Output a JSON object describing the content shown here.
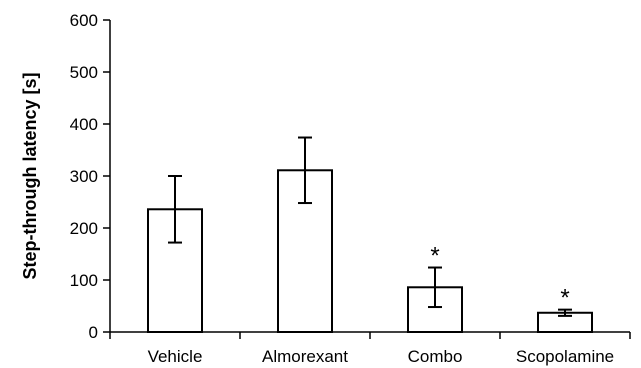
{
  "chart_data": {
    "type": "bar",
    "categories": [
      "Vehicle",
      "Almorexant",
      "Combo",
      "Scopolamine"
    ],
    "values": [
      236,
      311,
      86,
      37
    ],
    "errors": [
      64,
      63,
      38,
      6
    ],
    "significance": [
      "",
      "",
      "*",
      "*"
    ],
    "xlabel": "",
    "ylabel": "Step-through latency [s]",
    "ylim": [
      0,
      600
    ],
    "yticks": [
      0,
      100,
      200,
      300,
      400,
      500,
      600
    ],
    "grid": false,
    "legend": "none",
    "bar_fill": "#ffffff",
    "bar_stroke": "#000000"
  }
}
